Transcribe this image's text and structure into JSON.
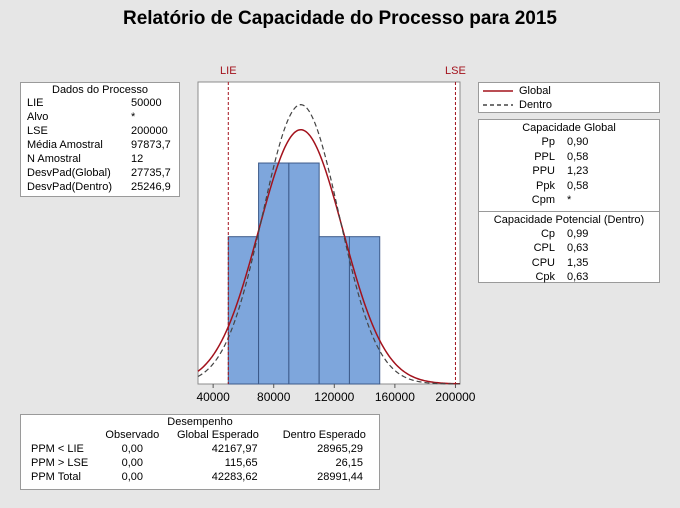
{
  "title": "Relatório de Capacidade do Processo para 2015",
  "process_data": {
    "header": "Dados do Processo",
    "rows": [
      {
        "label": "LIE",
        "value": "50000"
      },
      {
        "label": "Alvo",
        "value": "*"
      },
      {
        "label": "LSE",
        "value": "200000"
      },
      {
        "label": "Média Amostral",
        "value": "97873,7"
      },
      {
        "label": "N Amostral",
        "value": "12"
      },
      {
        "label": "DesvPad(Global)",
        "value": "27735,7"
      },
      {
        "label": "DesvPad(Dentro)",
        "value": "25246,9"
      }
    ]
  },
  "legend": [
    {
      "label": "Global",
      "style": "solid",
      "color": "#a3121c"
    },
    {
      "label": "Dentro",
      "style": "dashed",
      "color": "#444444"
    }
  ],
  "overall_capability": {
    "header": "Capacidade Global",
    "rows": [
      {
        "label": "Pp",
        "value": "0,90"
      },
      {
        "label": "PPL",
        "value": "0,58"
      },
      {
        "label": "PPU",
        "value": "1,23"
      },
      {
        "label": "Ppk",
        "value": "0,58"
      },
      {
        "label": "Cpm",
        "value": "*"
      }
    ]
  },
  "potential_capability": {
    "header": "Capacidade Potencial (Dentro)",
    "rows": [
      {
        "label": "Cp",
        "value": "0,99"
      },
      {
        "label": "CPL",
        "value": "0,63"
      },
      {
        "label": "CPU",
        "value": "1,35"
      },
      {
        "label": "Cpk",
        "value": "0,63"
      }
    ]
  },
  "performance": {
    "header": "Desempenho",
    "columns": [
      "",
      "Observado",
      "Global Esperado",
      "Dentro Esperado"
    ],
    "rows": [
      {
        "label": "PPM < LIE",
        "observed": "0,00",
        "overall": "42167,97",
        "within": "28965,29"
      },
      {
        "label": "PPM > LSE",
        "observed": "0,00",
        "overall": "115,65",
        "within": "26,15"
      },
      {
        "label": "PPM Total",
        "observed": "0,00",
        "overall": "42283,62",
        "within": "28991,44"
      }
    ]
  },
  "chart_data": {
    "type": "bar",
    "subtype": "histogram",
    "bins": [
      {
        "start": 50000,
        "end": 70000,
        "count": 2
      },
      {
        "start": 70000,
        "end": 90000,
        "count": 3
      },
      {
        "start": 90000,
        "end": 110000,
        "count": 3
      },
      {
        "start": 110000,
        "end": 130000,
        "count": 2
      },
      {
        "start": 130000,
        "end": 150000,
        "count": 2
      }
    ],
    "x_ticks": [
      "40000",
      "80000",
      "120000",
      "160000",
      "200000"
    ],
    "x_tick_values": [
      40000,
      80000,
      120000,
      160000,
      200000
    ],
    "xlim": [
      30000,
      203000
    ],
    "ylim": [
      0,
      4.1
    ],
    "spec_lines": [
      {
        "label": "LIE",
        "value": 50000,
        "color": "#a3121c"
      },
      {
        "label": "LSE",
        "value": 200000,
        "color": "#a3121c"
      }
    ],
    "curves": [
      {
        "name": "Global",
        "mean": 97873.7,
        "sd": 27735.7,
        "style": "solid",
        "color": "#a3121c"
      },
      {
        "name": "Dentro",
        "mean": 97873.7,
        "sd": 25246.9,
        "style": "dashed",
        "color": "#444444"
      }
    ],
    "bar_color": "#7ea6dc",
    "bar_edge": "#3c5a8a",
    "grid": false,
    "legend_position": "top-right"
  }
}
